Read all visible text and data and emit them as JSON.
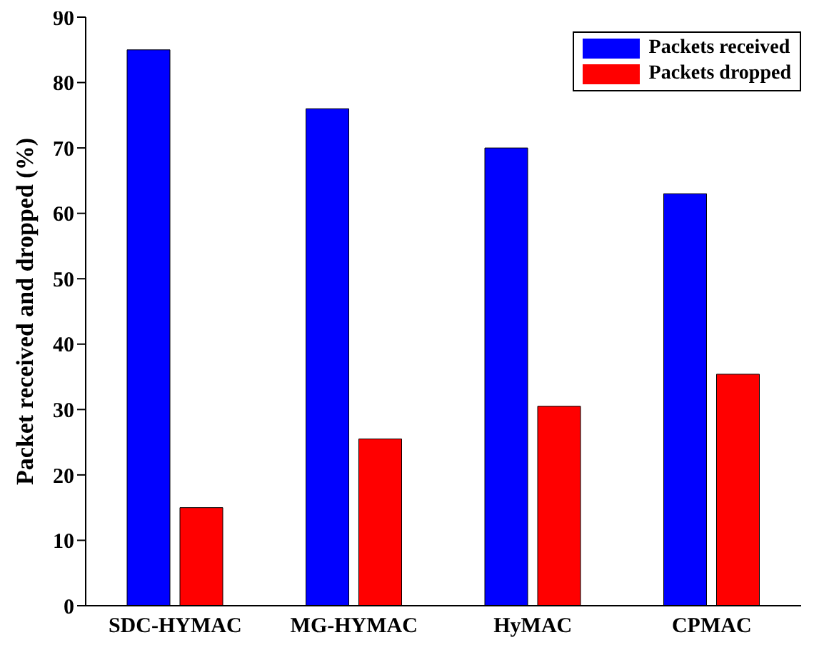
{
  "chart_data": {
    "type": "bar",
    "ylabel": "Packet received and dropped (%)",
    "categories": [
      "SDC-HYMAC",
      "MG-HYMAC",
      "HyMAC",
      "CPMAC"
    ],
    "series": [
      {
        "name": "Packets received",
        "color": "#0000ff",
        "values": [
          85,
          76,
          70,
          63
        ]
      },
      {
        "name": "Packets dropped",
        "color": "#ff0000",
        "values": [
          15,
          25.5,
          30.5,
          35.4
        ]
      }
    ],
    "ylim": [
      0,
      90
    ],
    "yticks": [
      0,
      10,
      20,
      30,
      40,
      50,
      60,
      70,
      80,
      90
    ],
    "legend": "top right"
  }
}
